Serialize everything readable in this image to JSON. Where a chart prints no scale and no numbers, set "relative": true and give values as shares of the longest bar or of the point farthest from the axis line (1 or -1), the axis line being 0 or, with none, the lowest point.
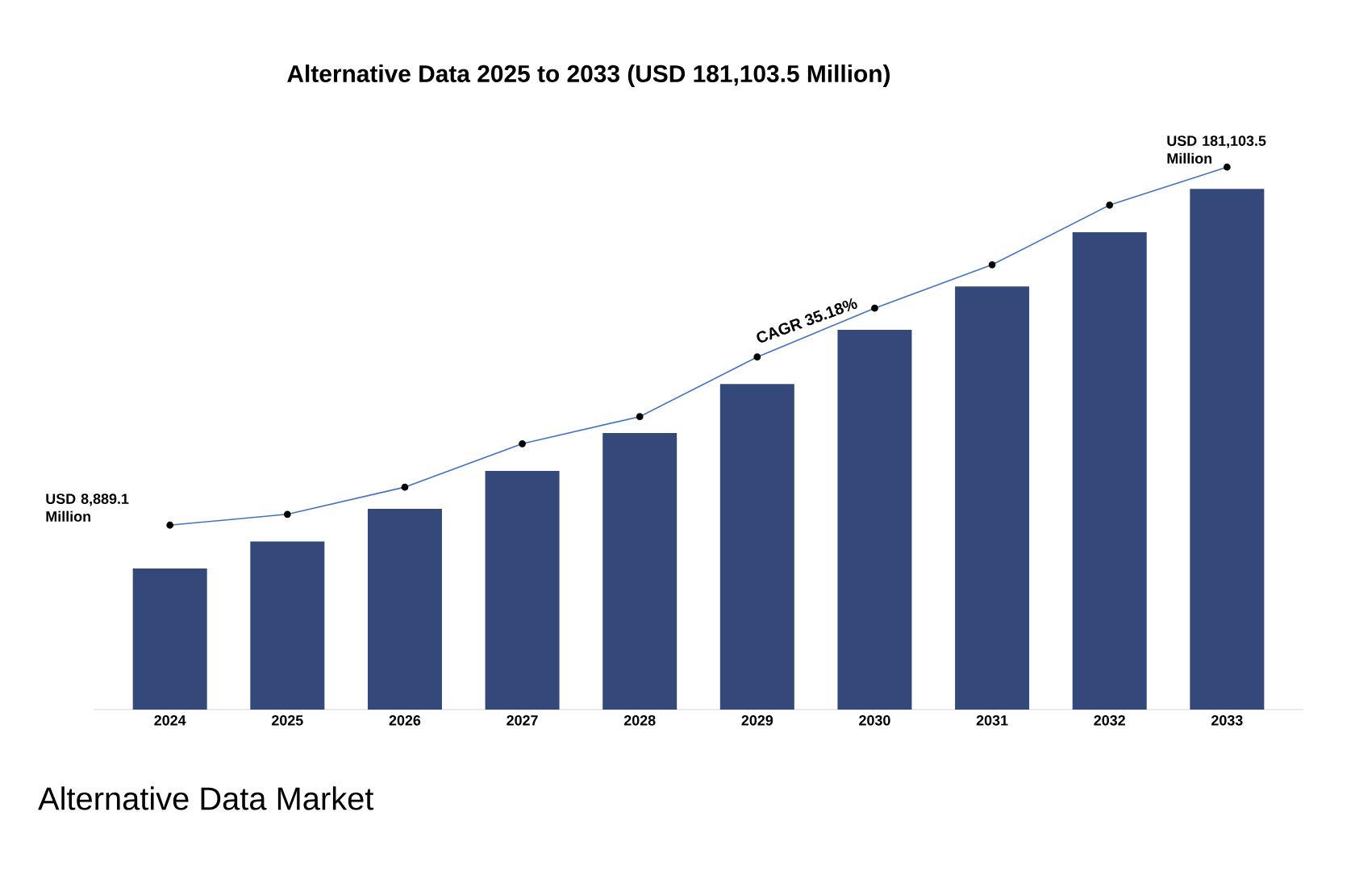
{
  "chart_data": {
    "type": "bar",
    "title": "Alternative Data 2025 to 2033 (USD 181,103.5 Million)",
    "relative": true,
    "marker": "circle",
    "categories": [
      "2024",
      "2025",
      "2026",
      "2027",
      "2028",
      "2029",
      "2030",
      "2031",
      "2032",
      "2033"
    ],
    "series": [
      {
        "type": "bar",
        "color": "#34497a",
        "values": [
          0.26,
          0.31,
          0.37,
          0.44,
          0.51,
          0.6,
          0.7,
          0.78,
          0.88,
          0.96
        ]
      },
      {
        "type": "line",
        "color": "#4472c4",
        "values": [
          0.34,
          0.36,
          0.41,
          0.49,
          0.54,
          0.65,
          0.74,
          0.82,
          0.93,
          1.0
        ]
      }
    ],
    "annotations": [
      {
        "text": "USD 8,889.1 Million",
        "x": "2024",
        "y": 0.34
      },
      {
        "text": "USD 181,103.5 Million",
        "x": "2033",
        "y": 1.0
      },
      "CAGR 35.18%",
      "Alternative Data Market"
    ]
  }
}
